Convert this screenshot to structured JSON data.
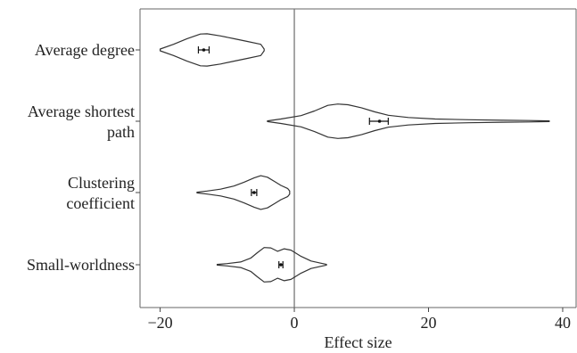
{
  "chart_data": {
    "type": "violin",
    "orientation": "horizontal",
    "xlabel": "Effect size",
    "xlim": [
      -23,
      42
    ],
    "xticks": [
      -20,
      0,
      20,
      40
    ],
    "xtick_labels": [
      "−20",
      "0",
      "20",
      "40"
    ],
    "reference_line_x": 0,
    "grid": false,
    "categories": [
      {
        "label_lines": [
          "Average degree"
        ],
        "min": -20,
        "max": -4.5,
        "mean": -13.5,
        "ci": [
          -14.3,
          -12.7
        ],
        "density": [
          [
            -20,
            0.05
          ],
          [
            -18,
            0.3
          ],
          [
            -16,
            0.6
          ],
          [
            -14,
            0.85
          ],
          [
            -13,
            0.86
          ],
          [
            -11,
            0.75
          ],
          [
            -9,
            0.6
          ],
          [
            -7,
            0.45
          ],
          [
            -5,
            0.3
          ],
          [
            -4.5,
            0.05
          ]
        ]
      },
      {
        "label_lines": [
          "Average shortest",
          "path"
        ],
        "min": -4,
        "max": 38,
        "mean": 12.7,
        "ci": [
          11.2,
          14.0
        ],
        "density": [
          [
            -4,
            0.02
          ],
          [
            -2,
            0.12
          ],
          [
            1,
            0.3
          ],
          [
            3,
            0.55
          ],
          [
            5,
            0.85
          ],
          [
            6.5,
            0.92
          ],
          [
            8,
            0.88
          ],
          [
            10,
            0.72
          ],
          [
            12,
            0.5
          ],
          [
            14,
            0.32
          ],
          [
            17,
            0.2
          ],
          [
            21,
            0.12
          ],
          [
            26,
            0.08
          ],
          [
            31,
            0.05
          ],
          [
            35,
            0.04
          ],
          [
            38,
            0.02
          ]
        ]
      },
      {
        "label_lines": [
          "Clustering",
          "coefficient"
        ],
        "min": -14.5,
        "max": -0.7,
        "mean": -6,
        "ci": [
          -6.4,
          -5.6
        ],
        "density": [
          [
            -14.5,
            0.02
          ],
          [
            -13,
            0.08
          ],
          [
            -11,
            0.18
          ],
          [
            -9,
            0.35
          ],
          [
            -7.5,
            0.55
          ],
          [
            -6,
            0.78
          ],
          [
            -5,
            0.9
          ],
          [
            -4,
            0.82
          ],
          [
            -3,
            0.6
          ],
          [
            -2,
            0.38
          ],
          [
            -1,
            0.22
          ],
          [
            -0.7,
            0.08
          ]
        ]
      },
      {
        "label_lines": [
          "Small-worldness"
        ],
        "min": -11.5,
        "max": 4.8,
        "mean": -2,
        "ci": [
          -2.3,
          -1.7
        ],
        "density": [
          [
            -11.5,
            0.02
          ],
          [
            -10,
            0.06
          ],
          [
            -8,
            0.15
          ],
          [
            -6.5,
            0.35
          ],
          [
            -5.5,
            0.65
          ],
          [
            -4.5,
            0.92
          ],
          [
            -3.5,
            0.9
          ],
          [
            -2.5,
            0.72
          ],
          [
            -1.5,
            0.85
          ],
          [
            -0.5,
            0.78
          ],
          [
            1,
            0.45
          ],
          [
            2.5,
            0.2
          ],
          [
            4,
            0.08
          ],
          [
            4.8,
            0.02
          ]
        ]
      }
    ]
  }
}
